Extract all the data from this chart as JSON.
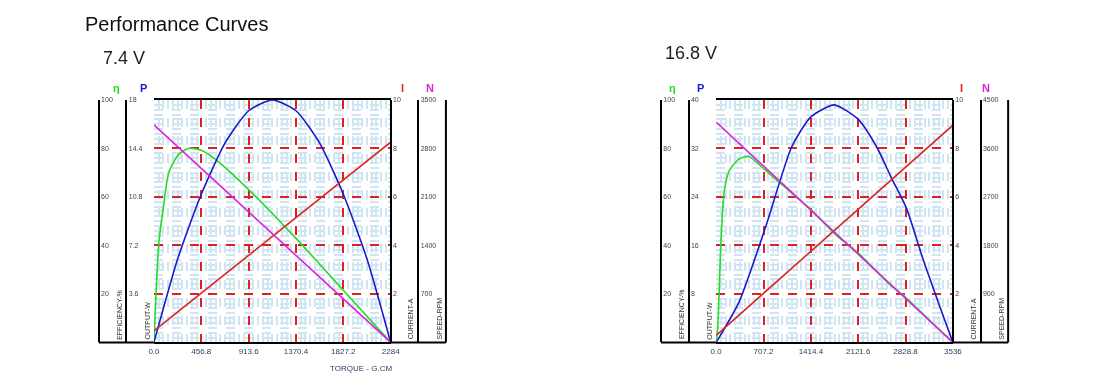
{
  "chart_data": [
    {
      "type": "line",
      "title": "Performance Curves",
      "subtitle": "7.4 V",
      "xlabel": "TORQUE - G.CM",
      "ylabel": "EFFICIENCY-%",
      "y2label": "OUTPUT-W",
      "y3label": "CURRENT-A",
      "xlim": [
        0,
        2284
      ],
      "xticks": [
        {
          "value": 0,
          "label": "0.0"
        },
        456.8,
        913.6,
        1370.4,
        1827.2,
        2284
      ],
      "ylim": [
        0,
        100
      ],
      "yticks": [
        20,
        40,
        60,
        80,
        100
      ],
      "y2lim": [
        0,
        18
      ],
      "y2ticks": [
        3.6,
        7.2,
        10.8,
        14.4,
        18
      ],
      "y3lim": [
        0,
        10
      ],
      "y3ticks": [
        2,
        4,
        6,
        8,
        10
      ],
      "grid": true,
      "series": [
        {
          "name": "η",
          "color": "#22dd22",
          "axis": "y",
          "x": [
            0,
            47,
            95,
            142,
            237,
            330,
            456.8,
            617,
            913.6,
            1370.4,
            1827.2,
            2284
          ],
          "values": [
            0,
            41,
            57,
            70,
            77.5,
            80,
            79.3,
            74.7,
            63,
            42.9,
            21.5,
            0
          ]
        },
        {
          "name": "P",
          "color": "#1a1acc",
          "axis": "y2",
          "x": [
            0,
            228.4,
            456.8,
            685.2,
            913.6,
            1142,
            1370.4,
            1598.8,
            1827.2,
            2055.6,
            2284
          ],
          "values": [
            0,
            6.2,
            11,
            14.8,
            17.2,
            18,
            17.2,
            14.8,
            11,
            6.2,
            0
          ]
        },
        {
          "name": "I",
          "color": "#dd2222",
          "axis": "y3",
          "x": [
            0,
            2284
          ],
          "values": [
            0.48,
            8.26
          ]
        }
      ]
    },
    {
      "type": "line",
      "ylabel": "SPEED-RPM",
      "tick_labels": "y",
      "xlim": [
        0,
        2284
      ],
      "ylim": [
        0,
        3500
      ],
      "yticks": [
        700,
        1400,
        2100,
        2800,
        3500
      ],
      "series": [
        {
          "name": "N",
          "color": "#dd22dd",
          "x": [
            0,
            2284
          ],
          "values": [
            3140,
            0
          ]
        }
      ]
    },
    {
      "type": "line",
      "subtitle": "16.8 V",
      "ylabel": "EFFICIENCY-%",
      "y2label": "OUTPUT-W",
      "y3label": "CURRENT-A",
      "xlim": [
        0,
        3536
      ],
      "xticks": [
        {
          "value": 0,
          "label": "0.0"
        },
        707.2,
        1414.4,
        2121.6,
        2828.8,
        3536
      ],
      "ylim": [
        0,
        100
      ],
      "yticks": [
        20,
        40,
        60,
        80,
        100
      ],
      "y2lim": [
        0,
        40
      ],
      "y2ticks": [
        8,
        16,
        24,
        32,
        40
      ],
      "y3lim": [
        0,
        10
      ],
      "y3ticks": [
        2,
        4,
        6,
        8,
        10
      ],
      "grid": true,
      "series": [
        {
          "name": "η",
          "color": "#22dd22",
          "axis": "y",
          "x": [
            0,
            25,
            73,
            122,
            196,
            343,
            490,
            720,
            979,
            1414,
            1812,
            2121.6,
            2595,
            2840,
            3183,
            3536
          ],
          "values": [
            0,
            7,
            43,
            62.6,
            70.9,
            75.7,
            76.7,
            71.4,
            65.2,
            54.8,
            43.7,
            36.9,
            23.8,
            18.3,
            9.2,
            0
          ]
        },
        {
          "name": "P",
          "color": "#1a1acc",
          "axis": "y2",
          "x": [
            0,
            343,
            734,
            1126,
            1414,
            1763,
            2121.6,
            2400,
            2615,
            2840,
            3085,
            3330,
            3536
          ],
          "values": [
            0,
            6.7,
            18.9,
            32.2,
            37.2,
            39.2,
            36.8,
            32.2,
            27.2,
            22.2,
            13.9,
            6.2,
            0
          ]
        },
        {
          "name": "I",
          "color": "#dd2222",
          "axis": "y3",
          "x": [
            0,
            3536
          ],
          "values": [
            0.29,
            8.96
          ]
        }
      ]
    },
    {
      "type": "line",
      "ylabel": "SPEED-RPM",
      "tick_labels": "y",
      "xlim": [
        0,
        3536
      ],
      "ylim": [
        0,
        4500
      ],
      "yticks": [
        900,
        1800,
        2700,
        3600,
        4500
      ],
      "series": [
        {
          "name": "N",
          "color": "#dd22dd",
          "x": [
            0,
            3536
          ],
          "values": [
            4090,
            0
          ]
        }
      ]
    }
  ]
}
